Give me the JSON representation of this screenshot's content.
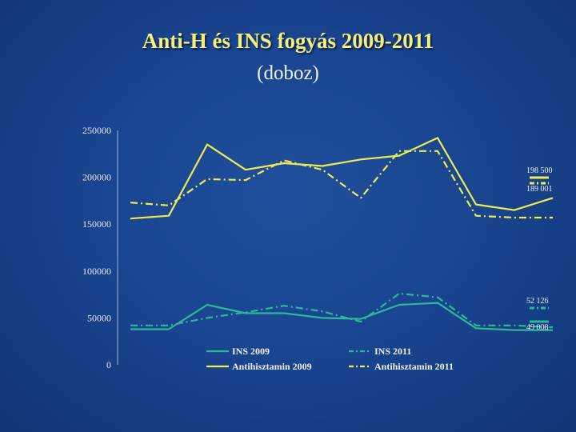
{
  "page": {
    "title": "Anti-H és INS fogyás 2009-2011",
    "subtitle": "(doboz)"
  },
  "chart_data": {
    "type": "line",
    "title": "Anti-H és INS fogyás 2009-2011",
    "subtitle": "(doboz)",
    "xlabel": "",
    "ylabel": "",
    "ylim": [
      0,
      250000
    ],
    "yticks": [
      0,
      50000,
      100000,
      150000,
      200000,
      250000
    ],
    "ytick_labels": [
      "0",
      "50000",
      "100000",
      "150000",
      "200000",
      "250000"
    ],
    "x": [
      1,
      2,
      3,
      4,
      5,
      6,
      7,
      8,
      9,
      10,
      11,
      12
    ],
    "grid": false,
    "legend_position": "bottom",
    "series": [
      {
        "name": "INS 2009",
        "color": "#2eb89a",
        "dash": "solid",
        "values": [
          38000,
          38000,
          64000,
          55000,
          55000,
          50000,
          49000,
          64000,
          66000,
          39000,
          37000,
          37000
        ],
        "end_label": "49 008"
      },
      {
        "name": "INS 2011",
        "color": "#2eb89a",
        "dash": "dashdot",
        "values": [
          42000,
          42000,
          50000,
          56000,
          63000,
          57000,
          46000,
          76000,
          72000,
          42000,
          42000,
          40000
        ],
        "end_label": "52 126"
      },
      {
        "name": "Antihisztamin 2009",
        "color": "#ecec52",
        "dash": "solid",
        "values": [
          156000,
          159000,
          235000,
          208000,
          215000,
          212000,
          219000,
          223000,
          242000,
          171000,
          165000,
          178000
        ],
        "end_label": "198 500"
      },
      {
        "name": "Antihisztamin 2011",
        "color": "#ecec52",
        "dash": "dashdot",
        "values": [
          173000,
          170000,
          198000,
          197000,
          218000,
          208000,
          178000,
          228000,
          228000,
          159000,
          157000,
          157000
        ],
        "end_label": "189 001"
      }
    ]
  }
}
